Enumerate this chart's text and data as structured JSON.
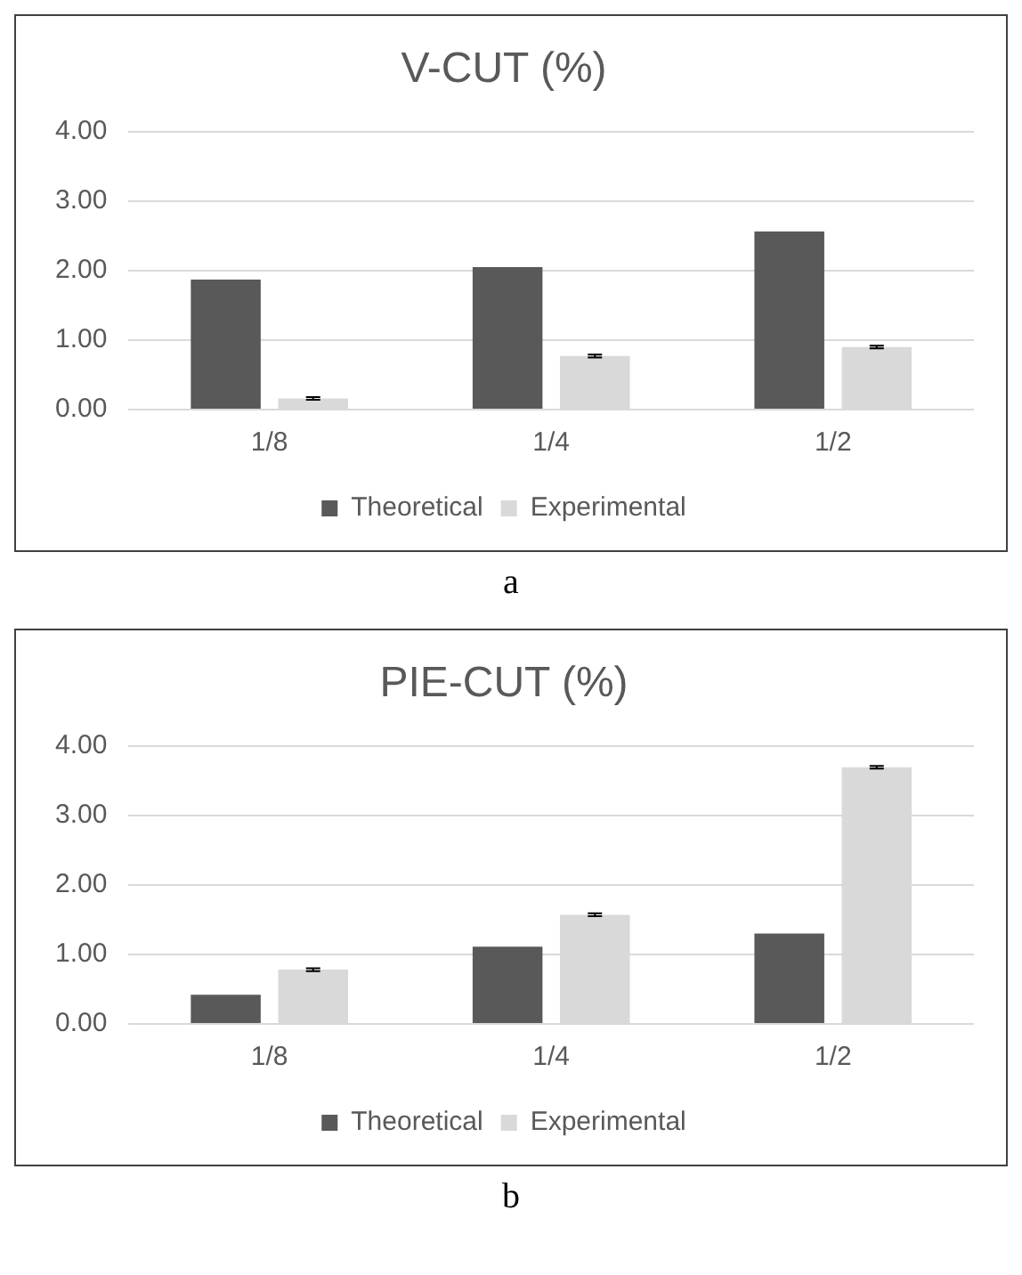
{
  "chart_data": [
    {
      "type": "bar",
      "title": "V-CUT (%)",
      "categories": [
        "1/8",
        "1/4",
        "1/2"
      ],
      "series": [
        {
          "name": "Theoretical",
          "color": "#595959",
          "values": [
            1.87,
            2.05,
            2.56
          ]
        },
        {
          "name": "Experimental",
          "color": "#d9d9d9",
          "values": [
            0.16,
            0.77,
            0.9
          ],
          "errors": [
            0.02,
            0.02,
            0.02
          ]
        }
      ],
      "ylim": [
        0,
        4
      ],
      "yticks": [
        {
          "value": 0,
          "label": "0.00"
        },
        {
          "value": 1,
          "label": "1.00"
        },
        {
          "value": 2,
          "label": "2.00"
        },
        {
          "value": 3,
          "label": "3.00"
        },
        {
          "value": 4,
          "label": "4.00"
        }
      ],
      "grid": "y",
      "legend": "bottom",
      "annotations": [
        "a"
      ]
    },
    {
      "type": "bar",
      "title": "PIE-CUT (%)",
      "categories": [
        "1/8",
        "1/4",
        "1/2"
      ],
      "series": [
        {
          "name": "Theoretical",
          "color": "#595959",
          "values": [
            0.42,
            1.11,
            1.3
          ]
        },
        {
          "name": "Experimental",
          "color": "#d9d9d9",
          "values": [
            0.78,
            1.57,
            3.69
          ],
          "errors": [
            0.02,
            0.02,
            0.02
          ]
        }
      ],
      "ylim": [
        0,
        4
      ],
      "yticks": [
        {
          "value": 0,
          "label": "0.00"
        },
        {
          "value": 1,
          "label": "1.00"
        },
        {
          "value": 2,
          "label": "2.00"
        },
        {
          "value": 3,
          "label": "3.00"
        },
        {
          "value": 4,
          "label": "4.00"
        }
      ],
      "grid": "y",
      "legend": "bottom",
      "annotations": [
        "b"
      ]
    }
  ]
}
